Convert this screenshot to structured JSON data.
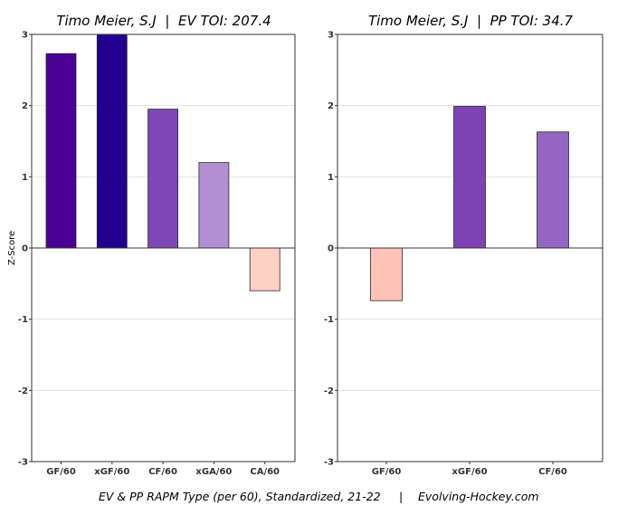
{
  "caption": {
    "left": "EV & PP RAPM Type (per 60), Standardized, 21-22",
    "separator": "|",
    "right": "Evolving-Hockey.com"
  },
  "chart_data": [
    {
      "type": "bar",
      "title": "Timo Meier, S.J  |  EV TOI: 207.4",
      "ylabel": "Z-Score",
      "xlabel": "",
      "ylim": [
        -3,
        3
      ],
      "yticks": [
        -3,
        -2,
        -1,
        0,
        1,
        2,
        3
      ],
      "grid": true,
      "categories": [
        "GF/60",
        "xGF/60",
        "CF/60",
        "xGA/60",
        "CA/60"
      ],
      "values": [
        2.73,
        3.0,
        1.95,
        1.2,
        -0.6
      ],
      "colors": [
        "#4b0096",
        "#23008e",
        "#7e46b7",
        "#b28fd2",
        "#fdd0c4"
      ]
    },
    {
      "type": "bar",
      "title": "Timo Meier, S.J  |  PP TOI: 34.7",
      "ylabel": "",
      "xlabel": "",
      "ylim": [
        -3,
        3
      ],
      "yticks": [
        -3,
        -2,
        -1,
        0,
        1,
        2,
        3
      ],
      "grid": true,
      "categories": [
        "GF/60",
        "xGF/60",
        "CF/60"
      ],
      "values": [
        -0.74,
        1.99,
        1.63
      ],
      "colors": [
        "#fec3b6",
        "#7d43b5",
        "#9366c4"
      ]
    }
  ]
}
